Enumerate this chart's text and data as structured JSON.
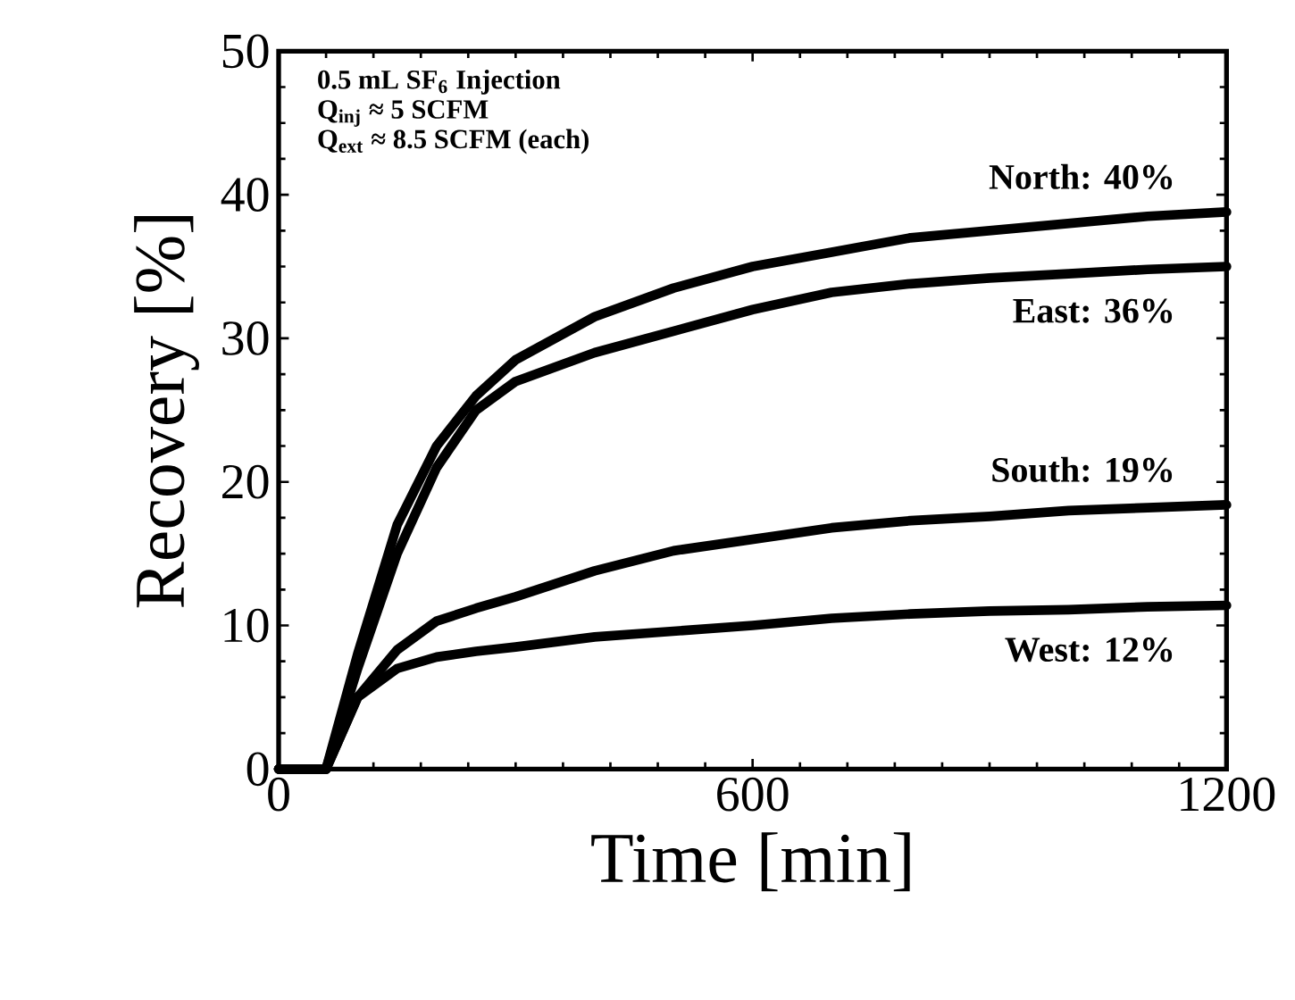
{
  "chart_data": {
    "type": "line",
    "xlabel": "Time [min]",
    "ylabel": "Recovery [%]",
    "xlim": [
      0,
      1200
    ],
    "xticks": [
      0,
      600,
      1200
    ],
    "ylim": [
      0,
      50
    ],
    "yticks": [
      0,
      10,
      20,
      30,
      40,
      50
    ],
    "grid": false,
    "legend": "right",
    "marker": "none",
    "line_style": "solid",
    "annotations": [
      "0.5 mL SF$_{6}$ Injection",
      "Q$_{inj}$ ≈ 5 SCFM",
      "Q$_{ext}$ ≈ 8.5 SCFM (each)"
    ],
    "x": [
      0,
      60,
      100,
      150,
      200,
      250,
      300,
      400,
      500,
      600,
      700,
      800,
      900,
      1000,
      1100,
      1200
    ],
    "series": [
      {
        "name": "North: 40%",
        "color": "#000000",
        "values": [
          0,
          0,
          8,
          17,
          22.5,
          26,
          28.5,
          31.5,
          33.5,
          35,
          36,
          37,
          37.5,
          38,
          38.5,
          38.8
        ]
      },
      {
        "name": "East: 36%",
        "color": "#000000",
        "values": [
          0,
          0,
          7,
          15,
          21,
          25,
          27,
          29,
          30.5,
          32,
          33.2,
          33.8,
          34.2,
          34.5,
          34.8,
          35
        ]
      },
      {
        "name": "South: 19%",
        "color": "#000000",
        "values": [
          0,
          0,
          5,
          8.3,
          10.3,
          11.2,
          12,
          13.8,
          15.2,
          16,
          16.8,
          17.3,
          17.6,
          18,
          18.2,
          18.4
        ]
      },
      {
        "name": "West: 12%",
        "color": "#000000",
        "values": [
          0,
          0,
          5,
          7,
          7.8,
          8.2,
          8.5,
          9.2,
          9.6,
          10,
          10.5,
          10.8,
          11,
          11.1,
          11.3,
          11.4
        ]
      }
    ]
  }
}
